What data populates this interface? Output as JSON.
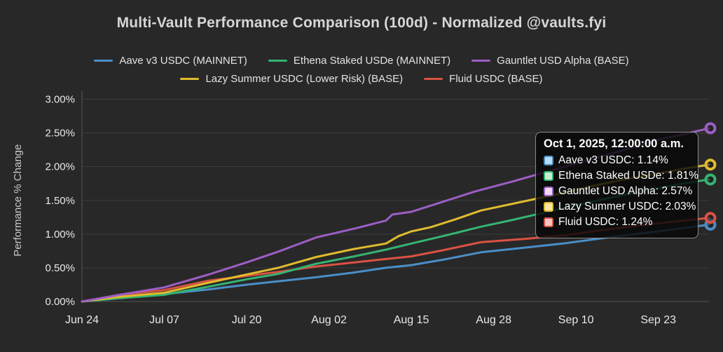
{
  "title": "Multi-Vault Performance Comparison (100d) - Normalized @vaults.fyi",
  "chart_data": {
    "type": "line",
    "title": "Multi-Vault Performance Comparison (100d) - Normalized @vaults.fyi",
    "xlabel": "",
    "ylabel": "Performance % Change",
    "ylim": [
      0,
      3
    ],
    "y_tick_labels": [
      "0.00%",
      "0.50%",
      "1.00%",
      "1.50%",
      "2.00%",
      "2.50%",
      "3.00%"
    ],
    "y_tick_values": [
      0,
      0.5,
      1,
      1.5,
      2,
      2.5,
      3
    ],
    "x_range_days": [
      0,
      99
    ],
    "x_tick_days": [
      0,
      13,
      26,
      39,
      52,
      65,
      78,
      91
    ],
    "x_tick_labels": [
      "Jun 24",
      "Jul 07",
      "Jul 20",
      "Aug 02",
      "Aug 15",
      "Aug 28",
      "Sep 10",
      "Sep 23"
    ],
    "grid": "horizontal-only",
    "legend_position": "top-center-two-rows",
    "legend_rows": [
      [
        0,
        1,
        2
      ],
      [
        3,
        4
      ]
    ],
    "draw_order": [
      0,
      4,
      1,
      3,
      2
    ],
    "series": [
      {
        "name": "Aave v3 USDC (MAINNET)",
        "short_name": "Aave v3 USDC",
        "color": "#4a8fc7",
        "swatch_fill": "#b9dcf5",
        "final_value": "1.14%",
        "points": [
          [
            0,
            0
          ],
          [
            6,
            0.05
          ],
          [
            13,
            0.11
          ],
          [
            20,
            0.18
          ],
          [
            26,
            0.25
          ],
          [
            31,
            0.3
          ],
          [
            37,
            0.36
          ],
          [
            43,
            0.43
          ],
          [
            48,
            0.5
          ],
          [
            52,
            0.54
          ],
          [
            57,
            0.62
          ],
          [
            63,
            0.73
          ],
          [
            70,
            0.8
          ],
          [
            76,
            0.86
          ],
          [
            83,
            0.95
          ],
          [
            91,
            1.04
          ],
          [
            95,
            1.09
          ],
          [
            99,
            1.14
          ]
        ]
      },
      {
        "name": "Ethena Staked USDe (MAINNET)",
        "short_name": "Ethena Staked USDe",
        "color": "#35b472",
        "swatch_fill": "#c3eed1",
        "final_value": "1.81%",
        "points": [
          [
            0,
            0
          ],
          [
            6,
            0.05
          ],
          [
            13,
            0.1
          ],
          [
            20,
            0.22
          ],
          [
            26,
            0.33
          ],
          [
            31,
            0.41
          ],
          [
            37,
            0.56
          ],
          [
            43,
            0.67
          ],
          [
            48,
            0.77
          ],
          [
            52,
            0.86
          ],
          [
            57,
            0.97
          ],
          [
            63,
            1.11
          ],
          [
            68,
            1.21
          ],
          [
            74,
            1.34
          ],
          [
            80,
            1.47
          ],
          [
            85,
            1.57
          ],
          [
            91,
            1.68
          ],
          [
            95,
            1.75
          ],
          [
            99,
            1.81
          ]
        ]
      },
      {
        "name": "Gauntlet USD Alpha (BASE)",
        "short_name": "Gauntlet USD Alpha",
        "color": "#9c5ec4",
        "swatch_fill": "#ead9f7",
        "final_value": "2.57%",
        "points": [
          [
            0,
            0
          ],
          [
            6,
            0.1
          ],
          [
            13,
            0.21
          ],
          [
            20,
            0.4
          ],
          [
            26,
            0.58
          ],
          [
            31,
            0.74
          ],
          [
            37,
            0.95
          ],
          [
            43,
            1.08
          ],
          [
            48,
            1.2
          ],
          [
            49,
            1.29
          ],
          [
            52,
            1.33
          ],
          [
            57,
            1.48
          ],
          [
            62,
            1.63
          ],
          [
            68,
            1.78
          ],
          [
            74,
            1.94
          ],
          [
            80,
            2.1
          ],
          [
            85,
            2.23
          ],
          [
            91,
            2.4
          ],
          [
            95,
            2.48
          ],
          [
            99,
            2.57
          ]
        ]
      },
      {
        "name": "Lazy Summer USDC (Lower Risk) (BASE)",
        "short_name": "Lazy Summer USDC",
        "color": "#e0bb2e",
        "swatch_fill": "#f6e8a6",
        "final_value": "2.03%",
        "points": [
          [
            0,
            0
          ],
          [
            6,
            0.07
          ],
          [
            13,
            0.13
          ],
          [
            20,
            0.28
          ],
          [
            26,
            0.4
          ],
          [
            31,
            0.5
          ],
          [
            37,
            0.66
          ],
          [
            43,
            0.78
          ],
          [
            48,
            0.86
          ],
          [
            50,
            0.97
          ],
          [
            52,
            1.04
          ],
          [
            55,
            1.1
          ],
          [
            59,
            1.22
          ],
          [
            63,
            1.35
          ],
          [
            68,
            1.45
          ],
          [
            74,
            1.57
          ],
          [
            80,
            1.7
          ],
          [
            85,
            1.8
          ],
          [
            91,
            1.9
          ],
          [
            95,
            1.97
          ],
          [
            99,
            2.03
          ]
        ]
      },
      {
        "name": "Fluid USDC (BASE)",
        "short_name": "Fluid USDC",
        "color": "#d95243",
        "swatch_fill": "#f6c6c4",
        "final_value": "1.24%",
        "points": [
          [
            0,
            0
          ],
          [
            6,
            0.1
          ],
          [
            13,
            0.17
          ],
          [
            20,
            0.31
          ],
          [
            26,
            0.38
          ],
          [
            31,
            0.44
          ],
          [
            37,
            0.52
          ],
          [
            43,
            0.58
          ],
          [
            48,
            0.63
          ],
          [
            52,
            0.67
          ],
          [
            57,
            0.76
          ],
          [
            63,
            0.88
          ],
          [
            70,
            0.93
          ],
          [
            76,
            0.98
          ],
          [
            83,
            1.07
          ],
          [
            91,
            1.16
          ],
          [
            95,
            1.2
          ],
          [
            99,
            1.24
          ]
        ]
      }
    ]
  },
  "tooltip": {
    "date": "Oct 1, 2025, 12:00:00 a.m.",
    "rows": [
      {
        "label": "Aave v3 USDC",
        "value": "1.14%",
        "series_index": 0
      },
      {
        "label": "Ethena Staked USDe",
        "value": "1.81%",
        "series_index": 1
      },
      {
        "label": "Gauntlet USD Alpha",
        "value": "2.57%",
        "series_index": 2
      },
      {
        "label": "Lazy Summer USDC",
        "value": "2.03%",
        "series_index": 3
      },
      {
        "label": "Fluid USDC",
        "value": "1.24%",
        "series_index": 4
      }
    ]
  },
  "theme": {
    "background": "#282828",
    "grid_color": "#3c3c3c",
    "axis_color": "#555555",
    "tick_text_color": "#e8e8e8",
    "axis_label_color": "#c9c9c9",
    "title_color": "#d6d6d6"
  }
}
